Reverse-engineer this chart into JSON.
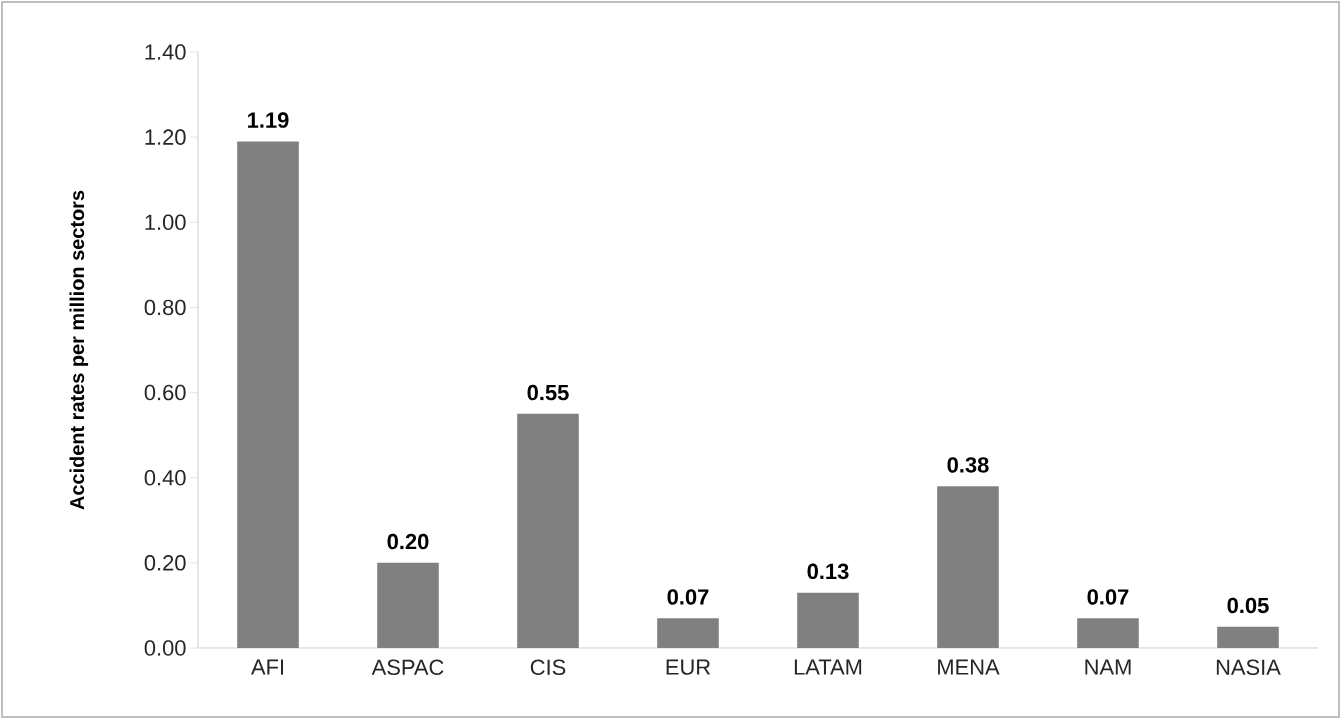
{
  "chart_data": {
    "type": "bar",
    "ylabel": "Accident rates per million sectors",
    "categories": [
      "AFI",
      "ASPAC",
      "CIS",
      "EUR",
      "LATAM",
      "MENA",
      "NAM",
      "NASIA"
    ],
    "values": [
      1.19,
      0.2,
      0.55,
      0.07,
      0.13,
      0.38,
      0.07,
      0.05
    ],
    "value_labels": [
      "1.19",
      "0.20",
      "0.55",
      "0.07",
      "0.13",
      "0.38",
      "0.07",
      "0.05"
    ],
    "color": "#808080",
    "ylim": [
      0,
      1.4
    ],
    "yticks": [
      {
        "value": 0,
        "label": "0.00"
      },
      {
        "value": 0.2,
        "label": "0.20"
      },
      {
        "value": 0.4,
        "label": "0.40"
      },
      {
        "value": 0.6,
        "label": "0.60"
      },
      {
        "value": 0.8,
        "label": "0.80"
      },
      {
        "value": 1.0,
        "label": "1.00"
      },
      {
        "value": 1.2,
        "label": "1.20"
      },
      {
        "value": 1.4,
        "label": "1.40"
      }
    ],
    "grid": false
  }
}
